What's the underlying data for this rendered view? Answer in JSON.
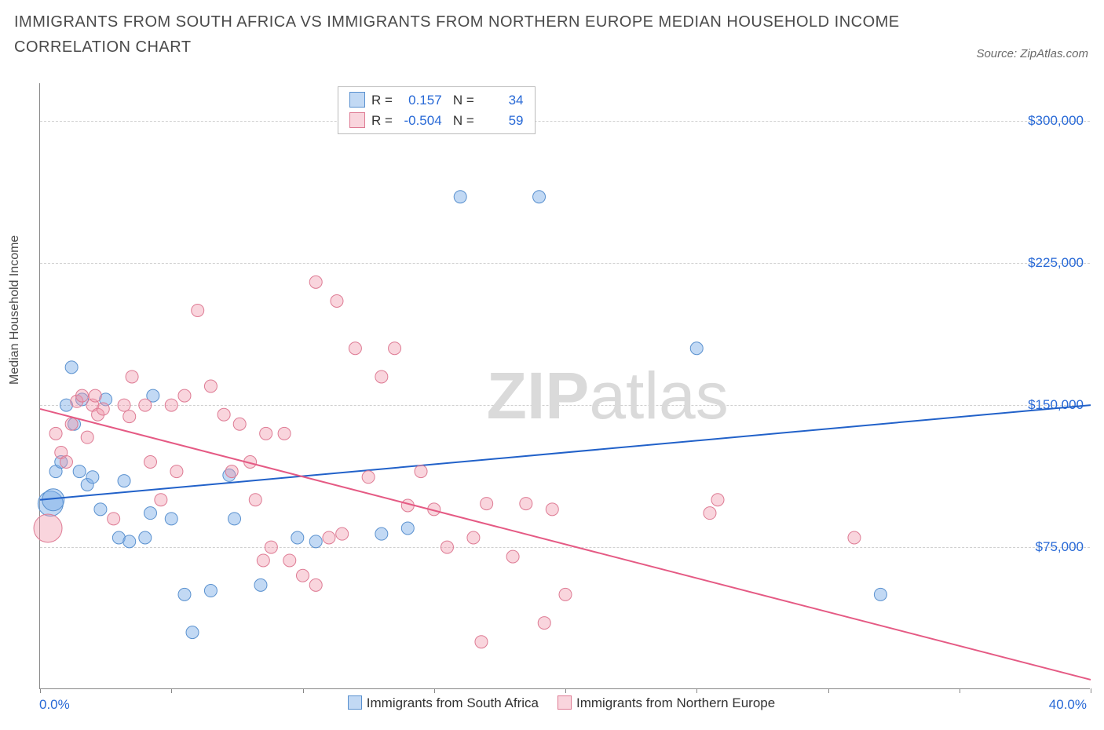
{
  "title": "IMMIGRANTS FROM SOUTH AFRICA VS IMMIGRANTS FROM NORTHERN EUROPE MEDIAN HOUSEHOLD INCOME CORRELATION CHART",
  "source_label": "Source: ZipAtlas.com",
  "y_axis_label": "Median Household Income",
  "watermark": {
    "bold": "ZIP",
    "rest": "atlas"
  },
  "chart": {
    "type": "scatter-with-regression",
    "xlim": [
      0.0,
      40.0
    ],
    "ylim": [
      0,
      320000
    ],
    "x_unit": "percent",
    "y_unit": "usd",
    "x_tick_positions": [
      0,
      5,
      10,
      15,
      20,
      25,
      30,
      35,
      40
    ],
    "y_ticks": [
      {
        "value": 75000,
        "label": "$75,000"
      },
      {
        "value": 150000,
        "label": "$150,000"
      },
      {
        "value": 225000,
        "label": "$225,000"
      },
      {
        "value": 300000,
        "label": "$300,000"
      }
    ],
    "x_min_label": "0.0%",
    "x_max_label": "40.0%",
    "background_color": "#ffffff",
    "grid_color": "#d0d0d0",
    "point_radius_base": 8,
    "series": [
      {
        "name": "Immigrants from South Africa",
        "color_fill": "rgba(120,170,230,0.45)",
        "color_stroke": "#5a91cf",
        "line_color": "#2161c9",
        "line_width": 2,
        "stats": {
          "R": "0.157",
          "N": "34"
        },
        "regression": {
          "y_at_xmin": 100000,
          "y_at_xmax": 150000
        },
        "points": [
          {
            "x": 0.4,
            "y": 98000,
            "r": 16
          },
          {
            "x": 0.5,
            "y": 100000,
            "r": 14
          },
          {
            "x": 0.6,
            "y": 115000
          },
          {
            "x": 0.8,
            "y": 120000
          },
          {
            "x": 1.0,
            "y": 150000
          },
          {
            "x": 1.2,
            "y": 170000
          },
          {
            "x": 1.3,
            "y": 140000
          },
          {
            "x": 1.5,
            "y": 115000
          },
          {
            "x": 1.6,
            "y": 153000
          },
          {
            "x": 1.8,
            "y": 108000
          },
          {
            "x": 2.0,
            "y": 112000
          },
          {
            "x": 2.3,
            "y": 95000
          },
          {
            "x": 2.5,
            "y": 153000
          },
          {
            "x": 3.0,
            "y": 80000
          },
          {
            "x": 3.2,
            "y": 110000
          },
          {
            "x": 3.4,
            "y": 78000
          },
          {
            "x": 4.0,
            "y": 80000
          },
          {
            "x": 4.2,
            "y": 93000
          },
          {
            "x": 4.3,
            "y": 155000
          },
          {
            "x": 5.0,
            "y": 90000
          },
          {
            "x": 5.5,
            "y": 50000
          },
          {
            "x": 5.8,
            "y": 30000
          },
          {
            "x": 6.5,
            "y": 52000
          },
          {
            "x": 7.2,
            "y": 113000
          },
          {
            "x": 7.4,
            "y": 90000
          },
          {
            "x": 8.4,
            "y": 55000
          },
          {
            "x": 9.8,
            "y": 80000
          },
          {
            "x": 10.5,
            "y": 78000
          },
          {
            "x": 13.0,
            "y": 82000
          },
          {
            "x": 14.0,
            "y": 85000
          },
          {
            "x": 16.0,
            "y": 260000
          },
          {
            "x": 19.0,
            "y": 260000
          },
          {
            "x": 25.0,
            "y": 180000
          },
          {
            "x": 32.0,
            "y": 50000
          }
        ]
      },
      {
        "name": "Immigrants from Northern Europe",
        "color_fill": "rgba(240,150,170,0.40)",
        "color_stroke": "#de7b94",
        "line_color": "#e55a84",
        "line_width": 2,
        "stats": {
          "R": "-0.504",
          "N": "59"
        },
        "regression": {
          "y_at_xmin": 148000,
          "y_at_xmax": 5000
        },
        "points": [
          {
            "x": 0.3,
            "y": 85000,
            "r": 18
          },
          {
            "x": 0.6,
            "y": 135000
          },
          {
            "x": 0.8,
            "y": 125000
          },
          {
            "x": 1.0,
            "y": 120000
          },
          {
            "x": 1.2,
            "y": 140000
          },
          {
            "x": 1.4,
            "y": 152000
          },
          {
            "x": 1.6,
            "y": 155000
          },
          {
            "x": 1.8,
            "y": 133000
          },
          {
            "x": 2.0,
            "y": 150000
          },
          {
            "x": 2.1,
            "y": 155000
          },
          {
            "x": 2.2,
            "y": 145000
          },
          {
            "x": 2.4,
            "y": 148000
          },
          {
            "x": 2.8,
            "y": 90000
          },
          {
            "x": 3.2,
            "y": 150000
          },
          {
            "x": 3.4,
            "y": 144000
          },
          {
            "x": 3.5,
            "y": 165000
          },
          {
            "x": 4.0,
            "y": 150000
          },
          {
            "x": 4.2,
            "y": 120000
          },
          {
            "x": 4.6,
            "y": 100000
          },
          {
            "x": 5.0,
            "y": 150000
          },
          {
            "x": 5.2,
            "y": 115000
          },
          {
            "x": 5.5,
            "y": 155000
          },
          {
            "x": 6.0,
            "y": 200000
          },
          {
            "x": 6.5,
            "y": 160000
          },
          {
            "x": 7.0,
            "y": 145000
          },
          {
            "x": 7.3,
            "y": 115000
          },
          {
            "x": 7.6,
            "y": 140000
          },
          {
            "x": 8.0,
            "y": 120000
          },
          {
            "x": 8.2,
            "y": 100000
          },
          {
            "x": 8.5,
            "y": 68000
          },
          {
            "x": 8.6,
            "y": 135000
          },
          {
            "x": 8.8,
            "y": 75000
          },
          {
            "x": 9.3,
            "y": 135000
          },
          {
            "x": 9.5,
            "y": 68000
          },
          {
            "x": 10.0,
            "y": 60000
          },
          {
            "x": 10.5,
            "y": 55000
          },
          {
            "x": 10.5,
            "y": 215000
          },
          {
            "x": 11.0,
            "y": 80000
          },
          {
            "x": 11.3,
            "y": 205000
          },
          {
            "x": 11.5,
            "y": 82000
          },
          {
            "x": 12.0,
            "y": 180000
          },
          {
            "x": 12.5,
            "y": 112000
          },
          {
            "x": 13.0,
            "y": 165000
          },
          {
            "x": 13.5,
            "y": 180000
          },
          {
            "x": 14.0,
            "y": 97000
          },
          {
            "x": 14.5,
            "y": 115000
          },
          {
            "x": 15.0,
            "y": 95000
          },
          {
            "x": 15.5,
            "y": 75000
          },
          {
            "x": 16.5,
            "y": 80000
          },
          {
            "x": 16.8,
            "y": 25000
          },
          {
            "x": 17.0,
            "y": 98000
          },
          {
            "x": 18.0,
            "y": 70000
          },
          {
            "x": 18.5,
            "y": 98000
          },
          {
            "x": 19.2,
            "y": 35000
          },
          {
            "x": 19.5,
            "y": 95000
          },
          {
            "x": 20.0,
            "y": 50000
          },
          {
            "x": 25.5,
            "y": 93000
          },
          {
            "x": 25.8,
            "y": 100000
          },
          {
            "x": 31.0,
            "y": 80000
          }
        ]
      }
    ]
  },
  "bottom_legend": [
    {
      "label": "Immigrants from South Africa",
      "swatch_fill": "rgba(120,170,230,0.45)",
      "swatch_border": "#5a91cf"
    },
    {
      "label": "Immigrants from Northern Europe",
      "swatch_fill": "rgba(240,150,170,0.40)",
      "swatch_border": "#de7b94"
    }
  ],
  "legend_box": {
    "r_label": "R =",
    "n_label": "N =",
    "rows": [
      {
        "swatch_fill": "rgba(120,170,230,0.45)",
        "swatch_border": "#5a91cf",
        "R": "0.157",
        "N": "34"
      },
      {
        "swatch_fill": "rgba(240,150,170,0.40)",
        "swatch_border": "#de7b94",
        "R": "-0.504",
        "N": "59"
      }
    ]
  }
}
